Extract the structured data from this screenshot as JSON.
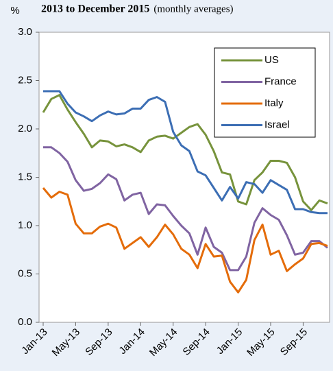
{
  "chart_data": {
    "type": "line",
    "title": "2013 to December 2015",
    "subtitle": "(monthly averages)",
    "y_label": "%",
    "categories": [
      "Jan-13",
      null,
      null,
      null,
      "May-13",
      null,
      null,
      null,
      "Sep-13",
      null,
      null,
      null,
      "Jan-14",
      null,
      null,
      null,
      "May-14",
      null,
      null,
      null,
      "Sep-14",
      null,
      null,
      null,
      "Jan-15",
      null,
      null,
      null,
      "May-15",
      null,
      null,
      null,
      "Sep-15",
      null,
      null,
      null
    ],
    "series": [
      {
        "name": "US",
        "color": "#77933c",
        "values": [
          2.17,
          2.31,
          2.35,
          2.2,
          2.07,
          1.95,
          1.81,
          1.88,
          1.87,
          1.82,
          1.84,
          1.81,
          1.76,
          1.88,
          1.92,
          1.93,
          1.9,
          1.96,
          2.02,
          2.05,
          1.94,
          1.77,
          1.55,
          1.53,
          1.25,
          1.22,
          1.47,
          1.55,
          1.67,
          1.67,
          1.65,
          1.5,
          1.25,
          1.16,
          1.26,
          1.23
        ]
      },
      {
        "name": "France",
        "color": "#8064a2",
        "values": [
          1.81,
          1.81,
          1.75,
          1.66,
          1.47,
          1.36,
          1.38,
          1.44,
          1.53,
          1.48,
          1.26,
          1.32,
          1.34,
          1.12,
          1.22,
          1.21,
          1.1,
          1.0,
          0.92,
          0.7,
          0.98,
          0.78,
          0.72,
          0.54,
          0.54,
          0.68,
          1.03,
          1.18,
          1.11,
          1.06,
          0.9,
          0.7,
          0.72,
          0.84,
          0.84,
          0.77
        ]
      },
      {
        "name": "Italy",
        "color": "#e46c0a",
        "values": [
          1.39,
          1.29,
          1.35,
          1.32,
          1.02,
          0.92,
          0.92,
          0.99,
          1.02,
          0.98,
          0.76,
          0.82,
          0.88,
          0.78,
          0.88,
          1.01,
          0.91,
          0.76,
          0.7,
          0.56,
          0.81,
          0.68,
          0.69,
          0.42,
          0.31,
          0.44,
          0.85,
          1.01,
          0.7,
          0.74,
          0.53,
          0.6,
          0.66,
          0.81,
          0.82,
          0.79
        ]
      },
      {
        "name": "Israel",
        "color": "#3c6eb4",
        "values": [
          2.39,
          2.39,
          2.39,
          2.26,
          2.17,
          2.13,
          2.08,
          2.14,
          2.18,
          2.15,
          2.16,
          2.21,
          2.21,
          2.3,
          2.33,
          2.28,
          1.97,
          1.83,
          1.77,
          1.56,
          1.52,
          1.39,
          1.26,
          1.4,
          1.28,
          1.45,
          1.43,
          1.34,
          1.47,
          1.42,
          1.37,
          1.17,
          1.17,
          1.14,
          1.13,
          1.13
        ]
      }
    ],
    "ylim": [
      0,
      3
    ],
    "yticks": [
      {
        "value": 0,
        "label": "0.0"
      },
      {
        "value": 0.5,
        "label": "0.5"
      },
      {
        "value": 1,
        "label": "1.0"
      },
      {
        "value": 1.5,
        "label": "1.5"
      },
      {
        "value": 2,
        "label": "2.0"
      },
      {
        "value": 2.5,
        "label": "2.5"
      },
      {
        "value": 3,
        "label": "3.0"
      }
    ],
    "grid": false,
    "legend": "upper right"
  }
}
